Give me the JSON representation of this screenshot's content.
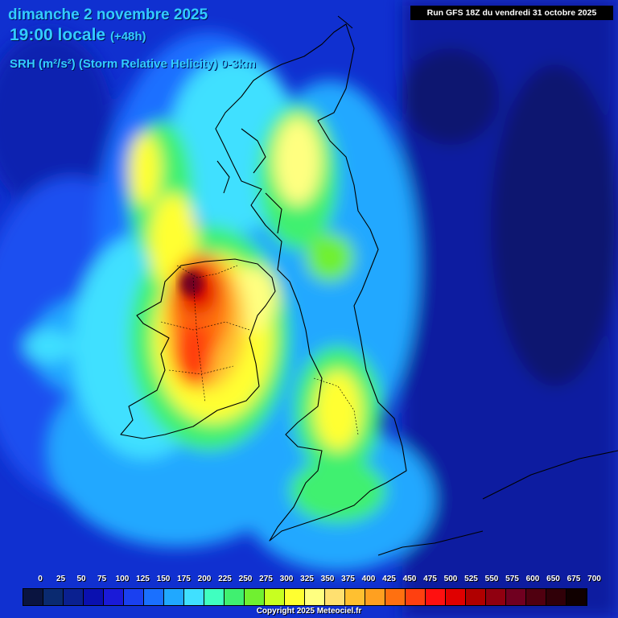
{
  "header": {
    "date": "dimanche 2 novembre 2025",
    "time": "19:00 locale",
    "lead": "(+48h)",
    "parameter": "SRH (m²/s²) (Storm Relative Helicity) 0-3km"
  },
  "run_info": "Run GFS 18Z du vendredi 31 octobre 2025",
  "legend": {
    "labels": [
      "0",
      "25",
      "50",
      "75",
      "100",
      "125",
      "150",
      "175",
      "200",
      "225",
      "250",
      "275",
      "300",
      "325",
      "350",
      "375",
      "400",
      "425",
      "450",
      "475",
      "500",
      "525",
      "550",
      "575",
      "600",
      "650",
      "675",
      "700"
    ],
    "colors": [
      "#0a1440",
      "#0a2a70",
      "#0a2090",
      "#0a10b0",
      "#1a1ad8",
      "#1a40f0",
      "#1a70ff",
      "#20a8ff",
      "#40e0ff",
      "#40ffc0",
      "#40f070",
      "#70f030",
      "#c8ff20",
      "#ffff30",
      "#ffff80",
      "#ffe070",
      "#ffc030",
      "#ffa020",
      "#ff7010",
      "#ff4010",
      "#ff1010",
      "#e00000",
      "#b00000",
      "#900010",
      "#700020",
      "#500010",
      "#300008",
      "#100000"
    ]
  },
  "copyright": "Copyright 2025 Meteociel.fr"
}
